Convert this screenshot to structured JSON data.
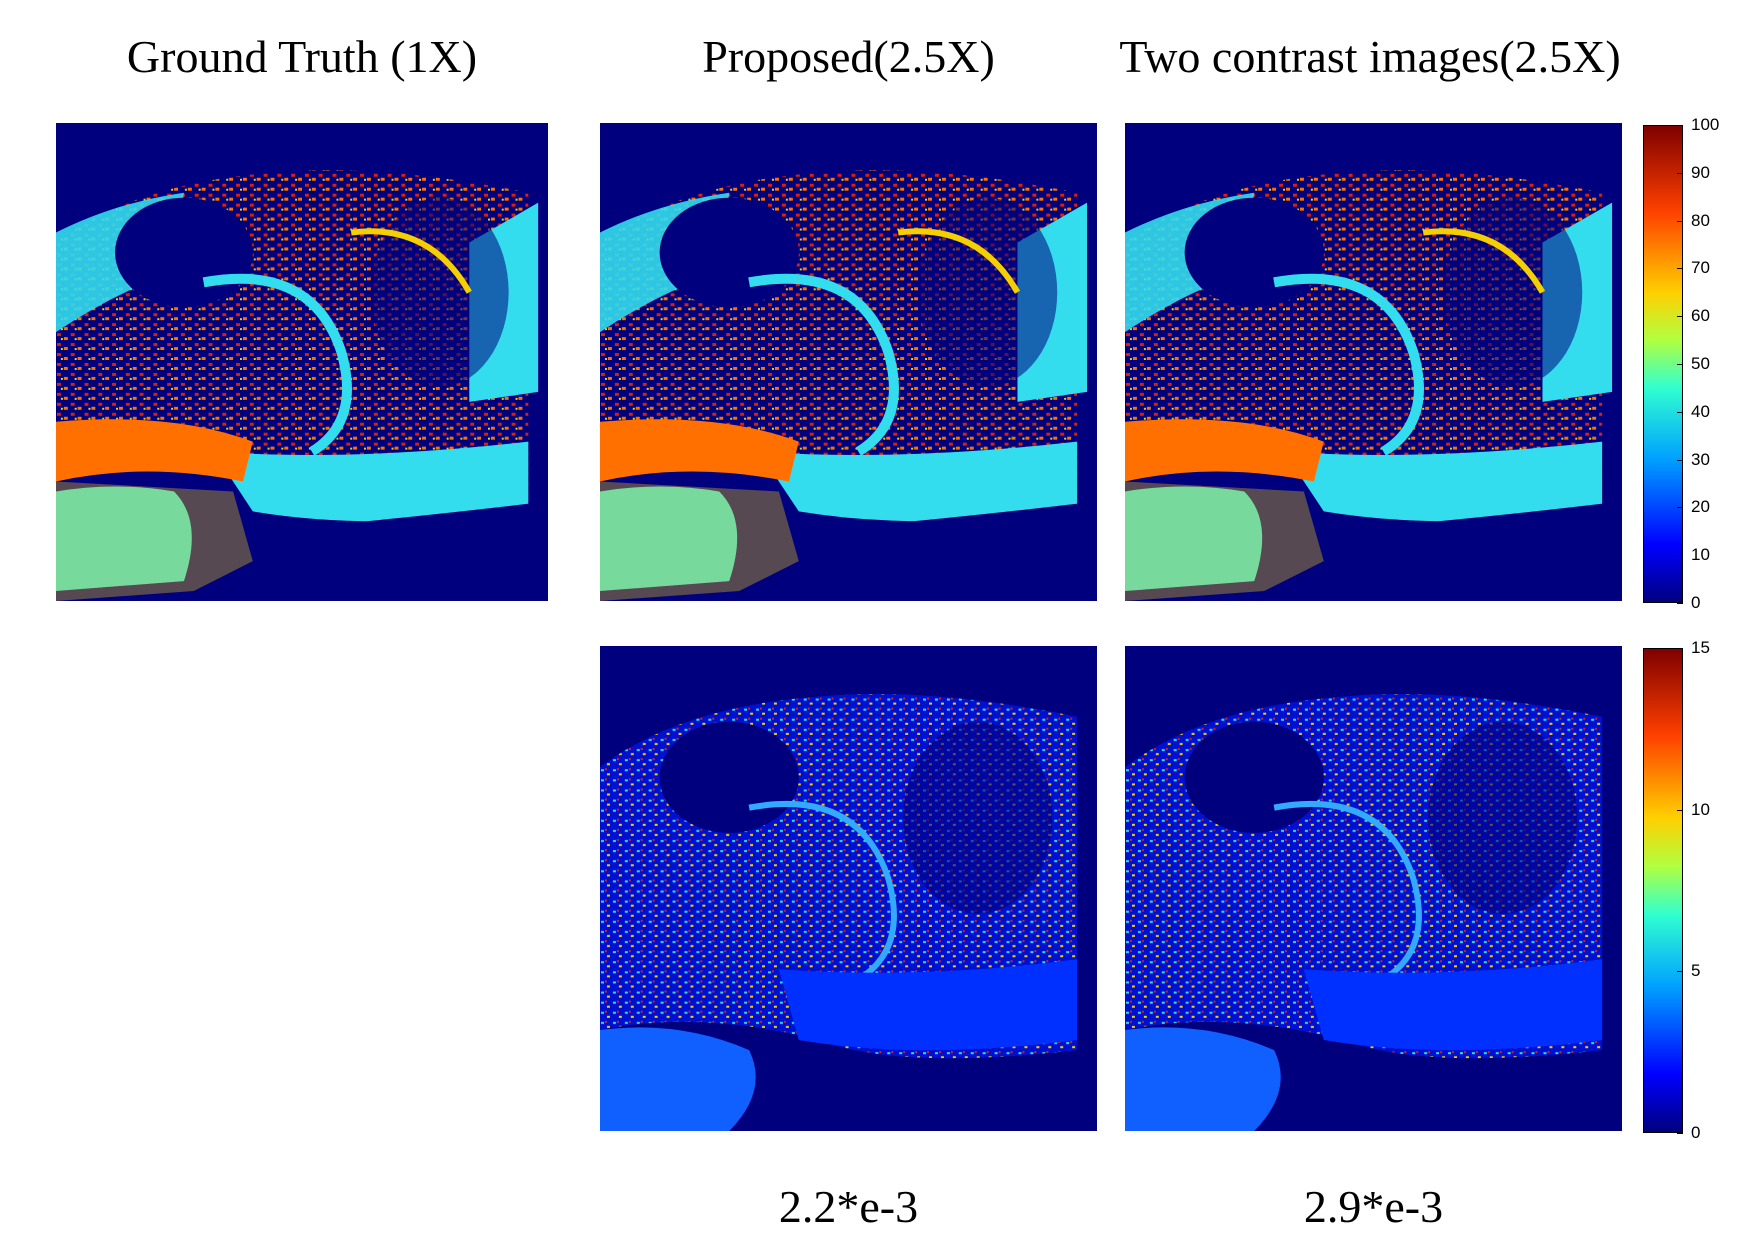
{
  "titles": {
    "ground_truth": "Ground Truth (1X)",
    "proposed": "Proposed(2.5X)",
    "two_contrast": "Two contrast images(2.5X)"
  },
  "error_values": {
    "proposed": "2.2*e-3",
    "two_contrast": "2.9*e-3"
  },
  "colorbar_top": {
    "colormap": "jet",
    "ticks": [
      "100",
      "90",
      "80",
      "70",
      "60",
      "50",
      "40",
      "30",
      "20",
      "10",
      "0"
    ]
  },
  "colorbar_bottom": {
    "colormap": "jet",
    "ticks": [
      "15",
      "10",
      "5",
      "0"
    ]
  },
  "colors": {
    "background_navy": "#00007f",
    "tissue_cyan": "#33ddee",
    "tissue_red": "#e02000",
    "tissue_yellow": "#f5d000"
  }
}
